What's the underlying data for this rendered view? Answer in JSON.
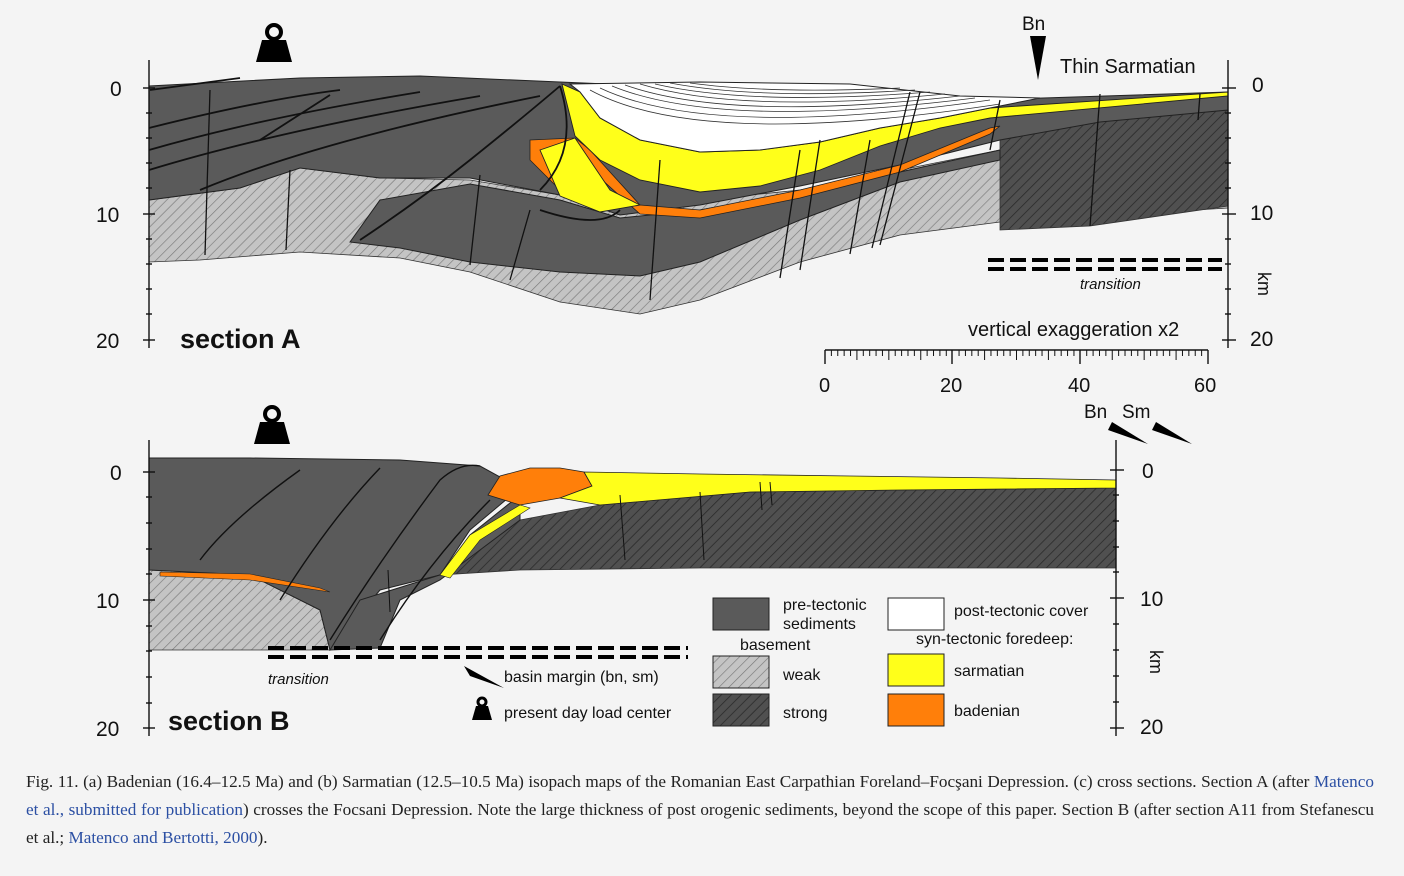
{
  "colors": {
    "background": "#f4f4f4",
    "pre_tectonic": "#5a5a5a",
    "weak_basement": "#c4c4c4",
    "strong_basement": "#505050",
    "post_tectonic": "#ffffff",
    "sarmatian": "#ffff1a",
    "badenian": "#ff7f0a",
    "citation_link": "#2b4fa3"
  },
  "section_a": {
    "title": "section A",
    "depth_ticks_left": [
      "0",
      "10",
      "20"
    ],
    "depth_ticks_right": [
      "0",
      "10",
      "20"
    ],
    "depth_unit": "km",
    "bn_label": "Bn",
    "thin_sarmatian_label": "Thin Sarmatian",
    "transition_label": "transition",
    "exaggeration_label": "vertical exaggeration x2",
    "scale_ticks": [
      "0",
      "20",
      "40",
      "60"
    ],
    "load_icon": "weight-icon"
  },
  "section_b": {
    "title": "section B",
    "depth_ticks_left": [
      "0",
      "10",
      "20"
    ],
    "depth_ticks_right": [
      "0",
      "10",
      "20"
    ],
    "depth_unit": "km",
    "bn_label": "Bn",
    "sm_label": "Sm",
    "transition_label": "transition",
    "load_icon": "weight-icon"
  },
  "legend": {
    "pre_tectonic": "pre-tectonic sediments",
    "basement_heading": "basement",
    "weak": "weak",
    "strong": "strong",
    "post_tectonic": "post-tectonic cover",
    "syn_tectonic_heading": "syn-tectonic foredeep:",
    "sarmatian": "sarmatian",
    "badenian": "badenian",
    "basin_margin": "basin margin (bn, sm)",
    "load_center": "present day load center"
  },
  "caption": {
    "text_1": "Fig. 11. (a) Badenian (16.4–12.5 Ma) and (b) Sarmatian (12.5–10.5 Ma) isopach maps of the Romanian East Carpathian Foreland–Focşani Depression. (c) cross sections. Section A (after ",
    "cite_1": "Matenco et al., submitted for publication",
    "text_2": ") crosses the Focsani Depression. Note the large thickness of post orogenic sediments, beyond the scope of this paper. Section B (after section A11 from Stefanescu et al.; ",
    "cite_2": "Matenco and Bertotti, 2000",
    "text_3": ")."
  }
}
